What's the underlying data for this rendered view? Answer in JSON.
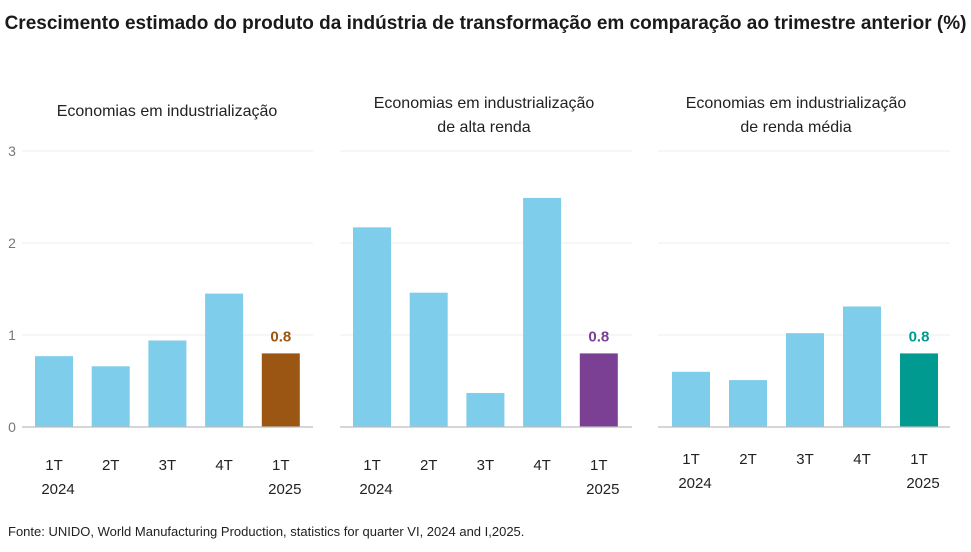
{
  "title": "Crescimento estimado do produto da indústria de transformação em comparação ao trimestre anterior (%)",
  "source": "Fonte: UNIDO, World  Manufacturing Production,  statistics for quarter VI, 2024 and I,2025.",
  "colors": {
    "default_bar": "#7ecdea",
    "highlight_panel_1": "#9c5614",
    "highlight_panel_2": "#7b3f93",
    "highlight_panel_3": "#009a91",
    "axis": "#bdbdbd",
    "grid": "#eeeeee",
    "tick_text": "#777777"
  },
  "chart_data": [
    {
      "type": "bar",
      "title": "Economias em industrialização",
      "categories": [
        [
          "1T",
          "2024"
        ],
        [
          "2T",
          ""
        ],
        [
          "3T",
          ""
        ],
        [
          "4T",
          ""
        ],
        [
          "1T",
          "2025"
        ]
      ],
      "values": [
        0.77,
        0.66,
        0.94,
        1.45,
        0.8
      ],
      "data_labels": [
        "",
        "",
        "",
        "",
        "0.8"
      ],
      "highlight_index": 4,
      "highlight_color": "#9c5614",
      "ylim": [
        0,
        3
      ],
      "yticks": [
        0,
        1,
        2,
        3
      ],
      "grid": true
    },
    {
      "type": "bar",
      "title": "Economias em industrialização de alta renda",
      "categories": [
        [
          "1T",
          "2024"
        ],
        [
          "2T",
          ""
        ],
        [
          "3T",
          ""
        ],
        [
          "4T",
          ""
        ],
        [
          "1T",
          "2025"
        ]
      ],
      "values": [
        2.17,
        1.46,
        0.37,
        2.49,
        0.8
      ],
      "data_labels": [
        "",
        "",
        "",
        "",
        "0.8"
      ],
      "highlight_index": 4,
      "highlight_color": "#7b3f93",
      "ylim": [
        0,
        3
      ],
      "grid": true
    },
    {
      "type": "bar",
      "title": "Economias em industrialização de renda média",
      "categories": [
        [
          "1T",
          "2024"
        ],
        [
          "2T",
          ""
        ],
        [
          "3T",
          ""
        ],
        [
          "4T",
          ""
        ],
        [
          "1T",
          "2025"
        ]
      ],
      "values": [
        0.6,
        0.51,
        1.02,
        1.31,
        0.8
      ],
      "data_labels": [
        "",
        "",
        "",
        "",
        "0.8"
      ],
      "highlight_index": 4,
      "highlight_color": "#009a91",
      "ylim": [
        0,
        3
      ],
      "grid": true
    }
  ],
  "panel_titles": [
    [
      "Economias em industrialização"
    ],
    [
      "Economias em industrialização",
      "de alta renda"
    ],
    [
      "Economias em industrialização",
      "de renda média"
    ]
  ]
}
